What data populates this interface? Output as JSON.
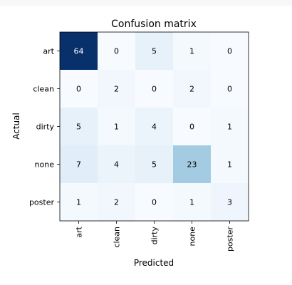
{
  "chart_data": {
    "type": "heatmap",
    "title": "Confusion matrix",
    "xlabel": "Predicted",
    "ylabel": "Actual",
    "x_categories": [
      "art",
      "clean",
      "dirty",
      "none",
      "poster"
    ],
    "y_categories": [
      "art",
      "clean",
      "dirty",
      "none",
      "poster"
    ],
    "matrix": [
      [
        64,
        0,
        5,
        1,
        0
      ],
      [
        0,
        2,
        0,
        2,
        0
      ],
      [
        5,
        1,
        4,
        0,
        1
      ],
      [
        7,
        4,
        5,
        23,
        1
      ],
      [
        1,
        2,
        0,
        1,
        3
      ]
    ],
    "colormap": "Blues",
    "vmax": 64,
    "grid": false
  }
}
